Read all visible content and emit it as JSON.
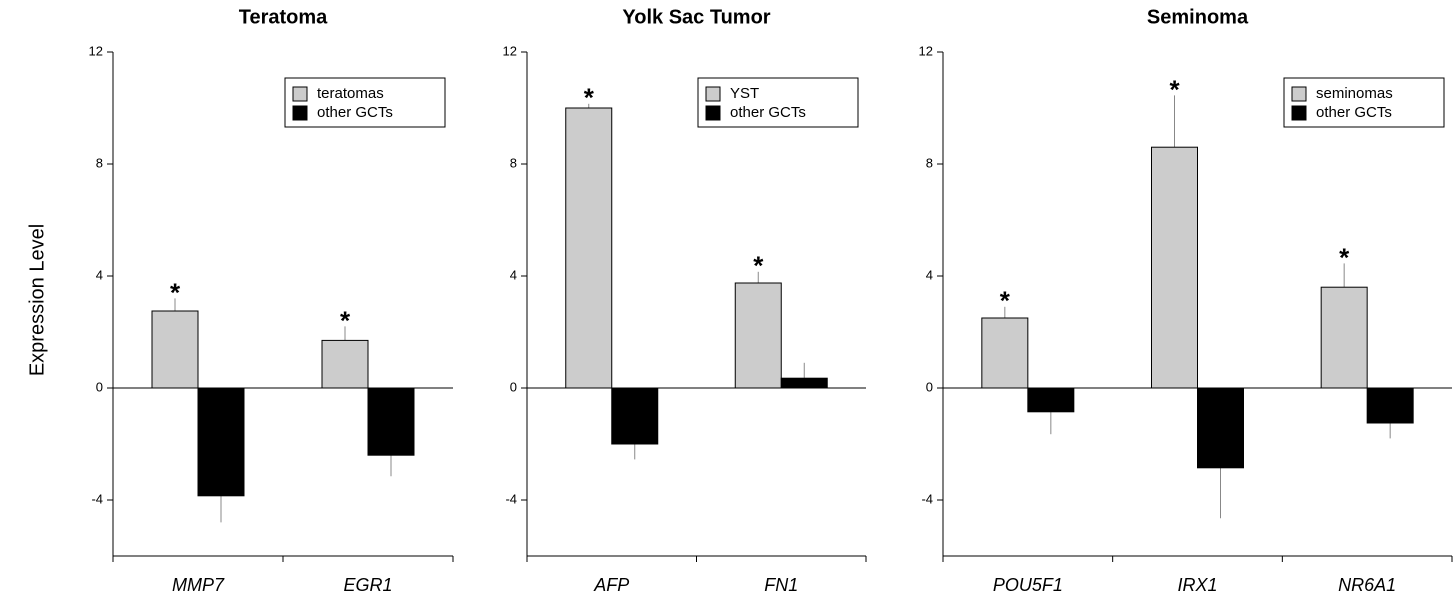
{
  "chart_data": [
    {
      "type": "bar",
      "title": "Teratoma",
      "ylabel": "Expression Level",
      "categories": [
        "MMP7",
        "EGR1"
      ],
      "series": [
        {
          "name": "teratomas",
          "color": "#cccccc",
          "values": [
            2.75,
            1.7
          ],
          "errors": [
            0.45,
            0.5
          ],
          "annotations": [
            "*",
            "*"
          ]
        },
        {
          "name": "other GCTs",
          "color": "#000000",
          "values": [
            -3.85,
            -2.4
          ],
          "errors": [
            0.95,
            0.75
          ]
        }
      ],
      "ylim": [
        -6,
        12
      ],
      "yticks": [
        12,
        8,
        4,
        0,
        -4
      ],
      "legend": "upper right"
    },
    {
      "type": "bar",
      "title": "Yolk Sac Tumor",
      "categories": [
        "AFP",
        "FN1"
      ],
      "series": [
        {
          "name": "YST",
          "color": "#cccccc",
          "values": [
            10.0,
            3.75
          ],
          "errors": [
            0.15,
            0.4
          ],
          "annotations": [
            "*",
            "*"
          ]
        },
        {
          "name": "other GCTs",
          "color": "#000000",
          "values": [
            -2.0,
            0.35
          ],
          "errors": [
            0.55,
            0.55
          ]
        }
      ],
      "ylim": [
        -6,
        12
      ],
      "yticks": [
        12,
        8,
        4,
        0,
        -4
      ],
      "legend": "upper right"
    },
    {
      "type": "bar",
      "title": "Seminoma",
      "categories": [
        "POU5F1",
        "IRX1",
        "NR6A1"
      ],
      "series": [
        {
          "name": "seminomas",
          "color": "#cccccc",
          "values": [
            2.5,
            8.6,
            3.6
          ],
          "errors": [
            0.4,
            1.85,
            0.85
          ],
          "annotations": [
            "*",
            "*",
            "*"
          ]
        },
        {
          "name": "other GCTs",
          "color": "#000000",
          "values": [
            -0.85,
            -2.85,
            -1.25
          ],
          "errors": [
            0.8,
            1.8,
            0.55
          ]
        }
      ],
      "ylim": [
        -6,
        12
      ],
      "yticks": [
        12,
        8,
        4,
        0,
        -4
      ],
      "legend": "upper right"
    }
  ]
}
